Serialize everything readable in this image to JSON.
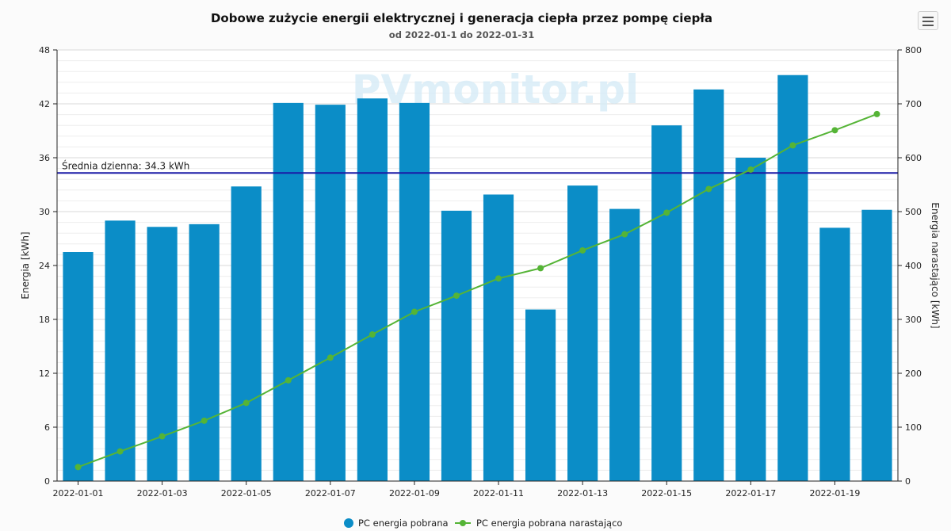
{
  "chart_data": {
    "type": "bar",
    "title": "Dobowe zużycie energii elektrycznej i generacja ciepła przez pompę ciepła",
    "subtitle": "od 2022-01-1 do 2022-01-31",
    "watermark": "PVmonitor.pl",
    "categories": [
      "2022-01-01",
      "2022-01-02",
      "2022-01-03",
      "2022-01-04",
      "2022-01-05",
      "2022-01-06",
      "2022-01-07",
      "2022-01-08",
      "2022-01-09",
      "2022-01-10",
      "2022-01-11",
      "2022-01-12",
      "2022-01-13",
      "2022-01-14",
      "2022-01-15",
      "2022-01-16",
      "2022-01-17",
      "2022-01-18",
      "2022-01-19",
      "2022-01-20"
    ],
    "x_tick_labels": [
      "2022-01-01",
      "2022-01-03",
      "2022-01-05",
      "2022-01-07",
      "2022-01-09",
      "2022-01-11",
      "2022-01-13",
      "2022-01-15",
      "2022-01-17",
      "2022-01-19"
    ],
    "series": [
      {
        "name": "PC energia pobrana",
        "type": "bar",
        "axis": "left",
        "color": "#0b8dc7",
        "values": [
          25.5,
          29.0,
          28.3,
          28.6,
          32.8,
          42.1,
          41.9,
          42.6,
          42.1,
          30.1,
          31.9,
          19.1,
          32.9,
          30.3,
          39.6,
          43.6,
          36.0,
          45.2,
          28.2,
          30.2
        ]
      },
      {
        "name": "PC energia pobrana narastająco",
        "type": "line",
        "axis": "right",
        "color": "#55b436",
        "values": [
          26,
          55,
          83,
          112,
          145,
          187,
          229,
          272,
          314,
          344,
          376,
          395,
          428,
          458,
          498,
          542,
          578,
          623,
          651,
          681
        ]
      }
    ],
    "ylabel_left": "Energia [kWh]",
    "ylabel_right": "Energia narastająco [kWh]",
    "ylim_left": [
      0,
      48
    ],
    "yticks_left": [
      0,
      6,
      12,
      18,
      24,
      30,
      36,
      42,
      48
    ],
    "ylim_right": [
      0,
      800
    ],
    "yticks_right": [
      0,
      100,
      200,
      300,
      400,
      500,
      600,
      700,
      800
    ],
    "average_line": {
      "value": 34.3,
      "label": "Średnia dzienna: 34.3 kWh",
      "color": "#1a1aa6"
    },
    "grid": true,
    "legend_position": "bottom-center"
  }
}
